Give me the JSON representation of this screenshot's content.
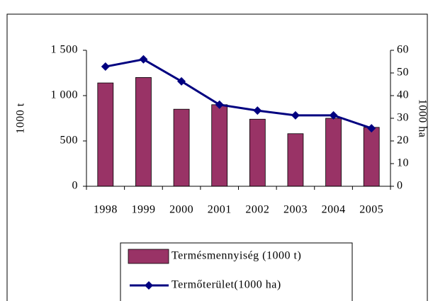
{
  "chart_data": {
    "type": "bar_line",
    "categories": [
      "1998",
      "1999",
      "2000",
      "2001",
      "2002",
      "2003",
      "2004",
      "2005"
    ],
    "series": [
      {
        "name": "Termésmennyiség (1000 t)",
        "color": "#993366",
        "type": "bar",
        "values": [
          1140,
          1200,
          850,
          900,
          740,
          580,
          750,
          650
        ]
      },
      {
        "name": "Termőterület(1000 ha)",
        "color": "#000080",
        "type": "line",
        "axis": "y2",
        "values": [
          52.8,
          56,
          46.3,
          36,
          33.4,
          31.3,
          31.3,
          25.6
        ]
      }
    ],
    "ylabel": "1000 t",
    "y2label": "1000 ha",
    "ylim": [
      0,
      1500
    ],
    "yticks": [
      0,
      500,
      {
        "value": 1000,
        "label": "1 000"
      },
      {
        "value": 1500,
        "label": "1 500"
      }
    ],
    "y2lim": [
      0,
      60
    ],
    "y2ticks": [
      0,
      10,
      20,
      30,
      40,
      50,
      60
    ],
    "legend": "bottom"
  }
}
